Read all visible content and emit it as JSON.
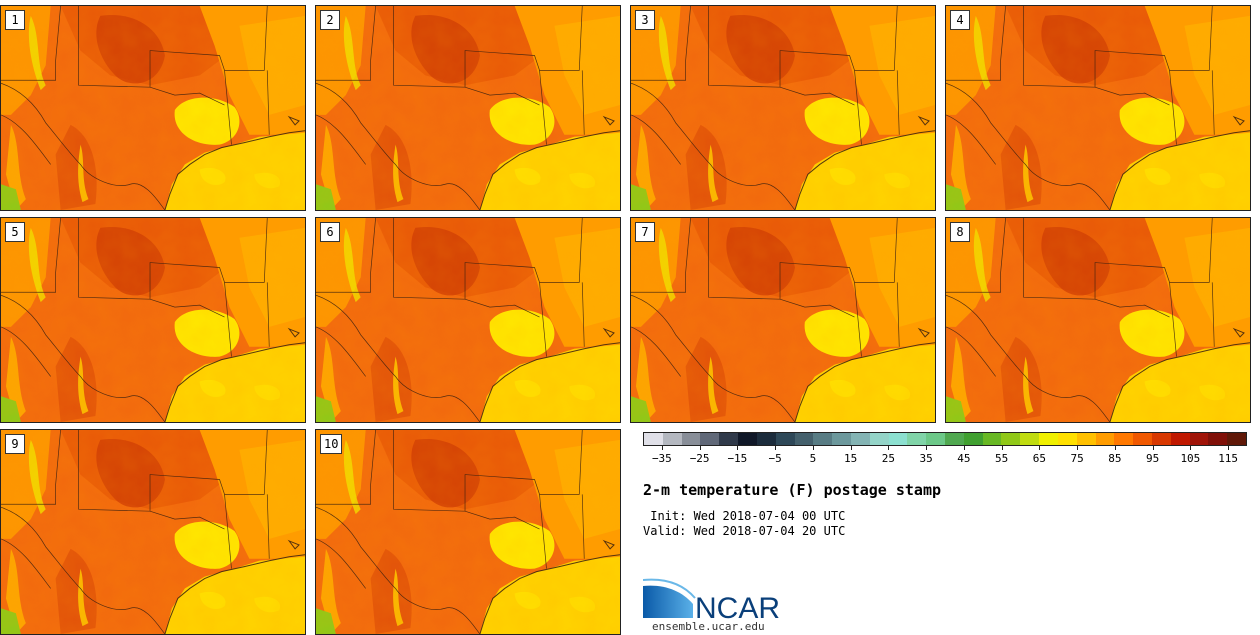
{
  "title": "2-m temperature (F) postage stamp",
  "init": " Init: Wed 2018-07-04 00 UTC",
  "valid": "Valid: Wed 2018-07-04 20 UTC",
  "members": [
    "1",
    "2",
    "3",
    "4",
    "5",
    "6",
    "7",
    "8",
    "9",
    "10"
  ],
  "colorbar": {
    "tick_labels": [
      "−35",
      "−25",
      "−15",
      "−5",
      "5",
      "15",
      "25",
      "35",
      "45",
      "55",
      "65",
      "75",
      "85",
      "95",
      "105",
      "115"
    ],
    "colors": [
      "#e0e0e8",
      "#b4b8c0",
      "#888e98",
      "#606878",
      "#303a4a",
      "#101828",
      "#1c2c3c",
      "#2e4858",
      "#44606c",
      "#587c84",
      "#6c989c",
      "#84b4b4",
      "#94d4c8",
      "#8ce0d0",
      "#80d4a8",
      "#6cc888",
      "#50a850",
      "#40a030",
      "#68b824",
      "#90c818",
      "#c0dc10",
      "#f0f000",
      "#ffe000",
      "#ffc000",
      "#ff9c00",
      "#ff7800",
      "#f05800",
      "#d83800",
      "#c01800",
      "#a01408",
      "#801008",
      "#601808"
    ]
  },
  "logo": {
    "text": "NCAR",
    "url": "ensemble.ucar.edu"
  }
}
